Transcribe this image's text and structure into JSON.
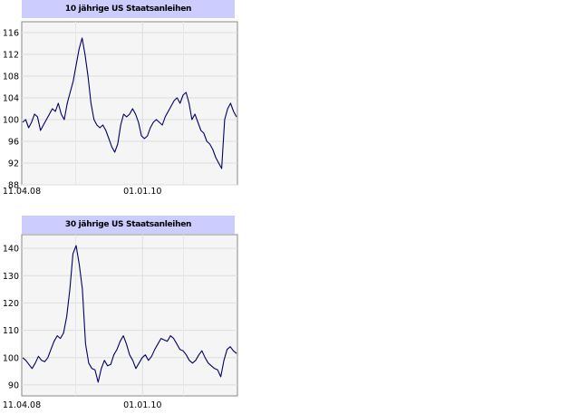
{
  "chart_data": [
    {
      "type": "line",
      "title": "10 jährige US Staatsanleihen",
      "ylim": [
        88,
        118
      ],
      "yticks": [
        88,
        92,
        96,
        100,
        104,
        108,
        112,
        116
      ],
      "ytick_labels": [
        "88",
        "92",
        "96",
        "100",
        "104",
        "108",
        "112",
        "116"
      ],
      "xtick_labels": [
        {
          "label": "11.04.08",
          "frac": 0.0
        },
        {
          "label": "01.01.10",
          "frac": 0.56
        }
      ],
      "grid": true,
      "line_color": "#000066",
      "series": [
        {
          "values": [
            99.5,
            100.0,
            98.5,
            99.5,
            101.0,
            100.5,
            98.0,
            99.0,
            100.0,
            101.0,
            102.0,
            101.5,
            103.0,
            101.0,
            100.0,
            103.0,
            105.0,
            107.0,
            110.0,
            113.0,
            115.0,
            112.0,
            108.0,
            103.0,
            100.0,
            99.0,
            98.5,
            99.0,
            98.0,
            96.5,
            95.0,
            94.0,
            95.5,
            99.0,
            101.0,
            100.5,
            101.0,
            102.0,
            101.0,
            99.5,
            97.0,
            96.5,
            97.0,
            98.5,
            99.5,
            100.0,
            99.5,
            99.0,
            100.5,
            101.5,
            102.5,
            103.5,
            104.0,
            103.0,
            104.5,
            105.0,
            103.0,
            100.0,
            101.0,
            99.5,
            98.0,
            97.5,
            96.0,
            95.5,
            94.5,
            93.0,
            92.0,
            91.0,
            100.0,
            102.0,
            103.0,
            101.5,
            100.5
          ]
        }
      ]
    },
    {
      "type": "line",
      "title": "30 jährige US Staatsanleihen",
      "ylim": [
        86,
        145
      ],
      "yticks": [
        90,
        100,
        110,
        120,
        130,
        140
      ],
      "ytick_labels": [
        "90",
        "100",
        "110",
        "120",
        "130",
        "140"
      ],
      "xtick_labels": [
        {
          "label": "11.04.08",
          "frac": 0.0
        },
        {
          "label": "01.01.10",
          "frac": 0.56
        }
      ],
      "grid": true,
      "line_color": "#000066",
      "series": [
        {
          "values": [
            100.0,
            99.0,
            97.5,
            96.0,
            98.0,
            100.5,
            99.0,
            98.5,
            100.0,
            103.0,
            106.0,
            108.0,
            107.0,
            109.0,
            115.0,
            125.0,
            138.0,
            141.0,
            134.0,
            125.0,
            105.0,
            98.0,
            96.0,
            95.5,
            91.0,
            96.0,
            99.0,
            97.0,
            97.5,
            101.0,
            103.0,
            106.0,
            108.0,
            105.0,
            101.0,
            99.0,
            96.0,
            98.0,
            100.0,
            101.0,
            99.0,
            100.5,
            103.0,
            105.0,
            107.0,
            106.5,
            106.0,
            108.0,
            107.0,
            105.0,
            103.0,
            102.5,
            101.0,
            99.0,
            98.0,
            99.0,
            101.0,
            102.5,
            100.0,
            98.0,
            97.0,
            96.0,
            95.5,
            93.0,
            99.0,
            103.0,
            104.0,
            102.5,
            101.5
          ]
        }
      ]
    }
  ]
}
